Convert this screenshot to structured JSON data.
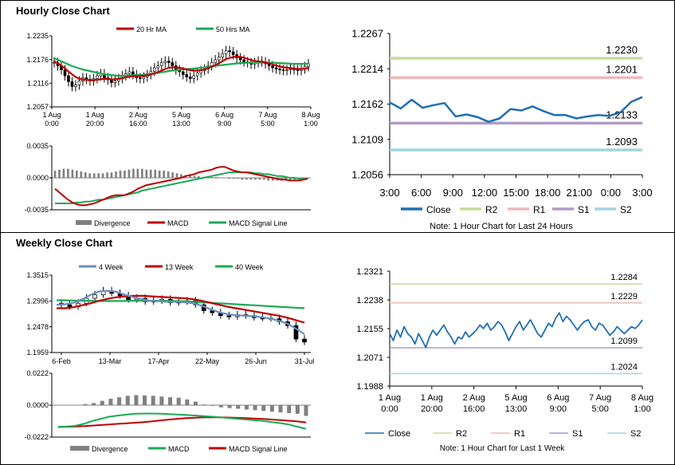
{
  "sections": {
    "hourly_title": "Hourly Close Chart",
    "weekly_title": "Weekly Close Chart"
  },
  "colors": {
    "ma_short": "#c00000",
    "ma_long": "#1aaa55",
    "close_blue": "#1f6fb4",
    "ma4_blue": "#6a8fc4",
    "r2": "#c6dc9a",
    "r1": "#efb8b8",
    "s1": "#b09ac8",
    "s2": "#9fd5e0",
    "divergence": "#808080",
    "grid": "#000000",
    "candle": "#000000"
  },
  "chart_data": [
    {
      "id": "hourly_price",
      "type": "line",
      "title": "",
      "ylim": [
        1.2057,
        1.2235
      ],
      "yticks": [
        "1.2235",
        "1.2176",
        "1.2116",
        "1.2057"
      ],
      "xticks": [
        [
          "1 Aug",
          "0:00"
        ],
        [
          "1 Aug",
          "20:00"
        ],
        [
          "2 Aug",
          "16:00"
        ],
        [
          "5 Aug",
          "13:00"
        ],
        [
          "6 Aug",
          "9:00"
        ],
        [
          "7 Aug",
          "5:00"
        ],
        [
          "8 Aug",
          "1:00"
        ]
      ],
      "legend": [
        "20 Hr MA",
        "50 Hrs MA"
      ],
      "close": [
        1.2168,
        1.216,
        1.215,
        1.2135,
        1.212,
        1.2108,
        1.2112,
        1.2122,
        1.213,
        1.2126,
        1.2122,
        1.2128,
        1.2135,
        1.214,
        1.213,
        1.2125,
        1.2118,
        1.2122,
        1.2128,
        1.2135,
        1.214,
        1.2145,
        1.2138,
        1.213,
        1.2128,
        1.2132,
        1.2138,
        1.2146,
        1.2155,
        1.216,
        1.2168,
        1.2172,
        1.2168,
        1.216,
        1.215,
        1.2145,
        1.2138,
        1.2132,
        1.2128,
        1.2135,
        1.2142,
        1.2148,
        1.2152,
        1.216,
        1.2168,
        1.2175,
        1.2182,
        1.219,
        1.2198,
        1.2195,
        1.2188,
        1.218,
        1.2175,
        1.217,
        1.2168,
        1.2164,
        1.2168,
        1.2172,
        1.217,
        1.2165,
        1.216,
        1.2155,
        1.2152,
        1.215,
        1.2148,
        1.215,
        1.2152,
        1.215,
        1.2148,
        1.2152,
        1.2158,
        1.2165
      ],
      "ma20": [
        1.2172,
        1.2168,
        1.2162,
        1.2155,
        1.2147,
        1.214,
        1.2133,
        1.2128,
        1.2126,
        1.2125,
        1.2124,
        1.2124,
        1.2125,
        1.2126,
        1.2127,
        1.2127,
        1.2126,
        1.2126,
        1.2127,
        1.2129,
        1.2131,
        1.2133,
        1.2134,
        1.2134,
        1.2134,
        1.2135,
        1.2136,
        1.2138,
        1.2141,
        1.2144,
        1.2148,
        1.2152,
        1.2155,
        1.2156,
        1.2156,
        1.2155,
        1.2153,
        1.2151,
        1.2149,
        1.2148,
        1.2148,
        1.2149,
        1.2151,
        1.2154,
        1.2158,
        1.2162,
        1.2167,
        1.2172,
        1.2177,
        1.218,
        1.2182,
        1.2183,
        1.2182,
        1.218,
        1.2177,
        1.2174,
        1.2172,
        1.2171,
        1.217,
        1.2168,
        1.2166,
        1.2163,
        1.216,
        1.2158,
        1.2156,
        1.2155,
        1.2154,
        1.2153,
        1.2152,
        1.2152,
        1.2153,
        1.2155
      ],
      "ma50": [
        1.218,
        1.2176,
        1.2172,
        1.2168,
        1.2164,
        1.216,
        1.2157,
        1.2154,
        1.2151,
        1.2149,
        1.2147,
        1.2145,
        1.2143,
        1.2141,
        1.2139,
        1.2138,
        1.2137,
        1.2136,
        1.2135,
        1.2135,
        1.2135,
        1.2136,
        1.2136,
        1.2137,
        1.2137,
        1.2138,
        1.2139,
        1.214,
        1.2141,
        1.2142,
        1.2144,
        1.2145,
        1.2147,
        1.2148,
        1.2149,
        1.215,
        1.2151,
        1.2152,
        1.2152,
        1.2153,
        1.2154,
        1.2155,
        1.2156,
        1.2157,
        1.2158,
        1.216,
        1.2161,
        1.2162,
        1.2163,
        1.2164,
        1.2165,
        1.2166,
        1.2167,
        1.2167,
        1.2168,
        1.2168,
        1.2168,
        1.2168,
        1.2168,
        1.2168,
        1.2168,
        1.2168,
        1.2167,
        1.2167,
        1.2166,
        1.2166,
        1.2165,
        1.2165,
        1.2165,
        1.2165,
        1.2165,
        1.2166
      ]
    },
    {
      "id": "hourly_macd",
      "type": "line",
      "ylim": [
        -0.0035,
        0.0035
      ],
      "yticks": [
        "0.0035",
        "0.0000",
        "-0.0035"
      ],
      "legend": [
        "Divergence",
        "MACD",
        "MACD Signal Line"
      ],
      "macd": [
        -0.0012,
        -0.0016,
        -0.002,
        -0.0024,
        -0.0027,
        -0.0029,
        -0.003,
        -0.003,
        -0.0029,
        -0.0028,
        -0.0026,
        -0.0024,
        -0.0022,
        -0.002,
        -0.0019,
        -0.0019,
        -0.0019,
        -0.0017,
        -0.0015,
        -0.0012,
        -0.001,
        -0.0008,
        -0.0007,
        -0.0006,
        -0.0005,
        -0.0004,
        -0.0003,
        -0.0002,
        -0.0001,
        0.0,
        0.0002,
        0.0003,
        0.0004,
        0.0006,
        0.0007,
        0.0008,
        0.0009,
        0.0011,
        0.0012,
        0.0012,
        0.001,
        0.0008,
        0.0007,
        0.0006,
        0.0006,
        0.0005,
        0.0004,
        0.0003,
        0.0002,
        0.0001,
        0.0,
        -0.0001,
        -0.0002,
        -0.0002,
        -0.0003,
        -0.0003,
        -0.0003,
        -0.0002,
        -0.0001
      ],
      "signal": [
        -0.0028,
        -0.0028,
        -0.0028,
        -0.0028,
        -0.0028,
        -0.0027,
        -0.0027,
        -0.0026,
        -0.0026,
        -0.0025,
        -0.0024,
        -0.0024,
        -0.0023,
        -0.0022,
        -0.0021,
        -0.002,
        -0.0019,
        -0.0018,
        -0.0017,
        -0.0016,
        -0.0014,
        -0.0013,
        -0.0012,
        -0.0011,
        -0.001,
        -0.0009,
        -0.0008,
        -0.0007,
        -0.0006,
        -0.0005,
        -0.0004,
        -0.0003,
        -0.0002,
        -0.0001,
        0.0,
        0.0001,
        0.0002,
        0.0003,
        0.0004,
        0.0005,
        0.0006,
        0.0006,
        0.0006,
        0.0006,
        0.0006,
        0.0006,
        0.0005,
        0.0005,
        0.0004,
        0.0004,
        0.0003,
        0.0002,
        0.0002,
        0.0001,
        0.0,
        0.0,
        -0.0001,
        -0.0001,
        -0.0001
      ],
      "divergence": [
        0.0008,
        0.0009,
        0.001,
        0.001,
        0.0009,
        0.0008,
        0.0007,
        0.0006,
        0.0005,
        0.0005,
        0.0005,
        0.0005,
        0.0006,
        0.0006,
        0.0007,
        0.0008,
        0.0008,
        0.0009,
        0.001,
        0.001,
        0.001,
        0.0009,
        0.0009,
        0.0009,
        0.0008,
        0.0008,
        0.0007,
        0.0006,
        0.0005,
        0.0004,
        0.0003,
        0.0003,
        0.0002,
        0.0002,
        0.0001,
        0.0001,
        0.0001,
        0.0001,
        0.0,
        0.0,
        -0.0001,
        -0.0001,
        -0.0001,
        -0.0002,
        -0.0002,
        -0.0002,
        -0.0002,
        -0.0002,
        -0.0002,
        -0.0003,
        -0.0003,
        -0.0003,
        -0.0003,
        -0.0003,
        -0.0003,
        -0.0002,
        -0.0002,
        -0.0002,
        -0.0001
      ]
    },
    {
      "id": "hourly_24h",
      "type": "line",
      "ylim": [
        1.2056,
        1.2267
      ],
      "yticks": [
        "1.2267",
        "1.2214",
        "1.2162",
        "1.2109",
        "1.2056"
      ],
      "xticks": [
        "3:00",
        "6:00",
        "9:00",
        "12:00",
        "15:00",
        "18:00",
        "21:00",
        "0:00",
        "3:00"
      ],
      "levels": [
        {
          "name": "R2",
          "value": 1.223,
          "label": "1.2230"
        },
        {
          "name": "R1",
          "value": 1.2201,
          "label": "1.2201"
        },
        {
          "name": "S1",
          "value": 1.2133,
          "label": "1.2133"
        },
        {
          "name": "S2",
          "value": 1.2093,
          "label": "1.2093"
        }
      ],
      "close": [
        1.2164,
        1.2155,
        1.2168,
        1.2156,
        1.216,
        1.2163,
        1.2143,
        1.2146,
        1.2142,
        1.2135,
        1.214,
        1.2154,
        1.2152,
        1.2158,
        1.2151,
        1.2145,
        1.2145,
        1.214,
        1.2143,
        1.2145,
        1.2144,
        1.2149,
        1.2165,
        1.2172
      ],
      "legend": [
        "Close",
        "R2",
        "R1",
        "S1",
        "S2"
      ],
      "note": "Note: 1 Hour Chart for Last 24 Hours"
    },
    {
      "id": "weekly_price",
      "type": "line",
      "ylim": [
        1.1959,
        1.3515
      ],
      "yticks": [
        "1.3515",
        "1.2996",
        "1.2478",
        "1.1959"
      ],
      "xticks": [
        "6-Feb",
        "13-Mar",
        "17-Apr",
        "22-May",
        "26-Jun",
        "31-Jul"
      ],
      "legend": [
        "4 Week",
        "13 Week",
        "40 Week"
      ],
      "close": [
        1.292,
        1.288,
        1.295,
        1.305,
        1.312,
        1.32,
        1.315,
        1.31,
        1.302,
        1.305,
        1.298,
        1.3,
        1.303,
        1.296,
        1.298,
        1.3,
        1.292,
        1.28,
        1.276,
        1.27,
        1.268,
        1.272,
        1.27,
        1.266,
        1.265,
        1.264,
        1.258,
        1.25,
        1.223,
        1.217
      ],
      "ma4": [
        1.292,
        1.293,
        1.296,
        1.303,
        1.312,
        1.319,
        1.32,
        1.318,
        1.312,
        1.307,
        1.303,
        1.3,
        1.299,
        1.298,
        1.298,
        1.297,
        1.295,
        1.29,
        1.283,
        1.277,
        1.273,
        1.271,
        1.27,
        1.269,
        1.267,
        1.264,
        1.26,
        1.254,
        1.244,
        1.233
      ],
      "ma13": [
        1.285,
        1.285,
        1.287,
        1.291,
        1.295,
        1.3,
        1.304,
        1.307,
        1.309,
        1.31,
        1.31,
        1.309,
        1.308,
        1.307,
        1.306,
        1.305,
        1.303,
        1.3,
        1.296,
        1.292,
        1.288,
        1.285,
        1.282,
        1.279,
        1.276,
        1.273,
        1.27,
        1.266,
        1.261,
        1.256
      ],
      "ma40": [
        1.301,
        1.301,
        1.3005,
        1.3,
        1.2998,
        1.2996,
        1.2995,
        1.2995,
        1.2996,
        1.2998,
        1.2999,
        1.3,
        1.3,
        1.2998,
        1.2996,
        1.299,
        1.298,
        1.297,
        1.296,
        1.295,
        1.294,
        1.293,
        1.292,
        1.291,
        1.29,
        1.289,
        1.288,
        1.287,
        1.286,
        1.285
      ]
    },
    {
      "id": "weekly_macd",
      "type": "line",
      "ylim": [
        -0.0222,
        0.0222
      ],
      "yticks": [
        "0.0222",
        "0.0000",
        "-0.0222"
      ],
      "legend": [
        "Divergence",
        "MACD",
        "MACD Signal Line"
      ],
      "divergence": [
        0.0,
        0.0,
        0.0,
        0.0008,
        0.0015,
        0.003,
        0.0045,
        0.0055,
        0.0065,
        0.007,
        0.0068,
        0.0065,
        0.006,
        0.0055,
        0.0052,
        0.004,
        0.0025,
        0.0005,
        -0.0005,
        -0.0015,
        -0.002,
        -0.0025,
        -0.003,
        -0.0035,
        -0.004,
        -0.0045,
        -0.005,
        -0.0055,
        -0.006,
        -0.0075
      ],
      "macd": [
        -0.015,
        -0.0148,
        -0.0144,
        -0.013,
        -0.011,
        -0.0095,
        -0.008,
        -0.0072,
        -0.0065,
        -0.006,
        -0.0058,
        -0.0058,
        -0.006,
        -0.0062,
        -0.0065,
        -0.0068,
        -0.0072,
        -0.0076,
        -0.008,
        -0.0085,
        -0.009,
        -0.0095,
        -0.01,
        -0.0105,
        -0.011,
        -0.0118,
        -0.0125,
        -0.0135,
        -0.015,
        -0.0165
      ],
      "signal": [
        -0.0152,
        -0.015,
        -0.0148,
        -0.0146,
        -0.0142,
        -0.0138,
        -0.0134,
        -0.013,
        -0.0126,
        -0.0122,
        -0.0118,
        -0.0112,
        -0.0106,
        -0.01,
        -0.0095,
        -0.009,
        -0.0087,
        -0.0085,
        -0.0085,
        -0.0085,
        -0.0086,
        -0.0088,
        -0.009,
        -0.0093,
        -0.0096,
        -0.01,
        -0.0104,
        -0.0108,
        -0.0113,
        -0.012
      ]
    },
    {
      "id": "weekly_hourly",
      "type": "line",
      "ylim": [
        1.1988,
        1.2321
      ],
      "yticks": [
        "1.2321",
        "1.2238",
        "1.2155",
        "1.2071",
        "1.1988"
      ],
      "xticks": [
        [
          "1 Aug",
          "0:00"
        ],
        [
          "1 Aug",
          "20:00"
        ],
        [
          "2 Aug",
          "16:00"
        ],
        [
          "5 Aug",
          "13:00"
        ],
        [
          "6 Aug",
          "9:00"
        ],
        [
          "7 Aug",
          "5:00"
        ],
        [
          "8 Aug",
          "1:00"
        ]
      ],
      "levels": [
        {
          "name": "R2",
          "value": 1.2284,
          "label": "1.2284"
        },
        {
          "name": "R1",
          "value": 1.2229,
          "label": "1.2229"
        },
        {
          "name": "S1",
          "value": 1.2099,
          "label": "1.2099"
        },
        {
          "name": "S2",
          "value": 1.2024,
          "label": "1.2024"
        }
      ],
      "close": [
        1.214,
        1.212,
        1.215,
        1.213,
        1.216,
        1.214,
        1.213,
        1.211,
        1.214,
        1.212,
        1.21,
        1.213,
        1.215,
        1.2135,
        1.215,
        1.2165,
        1.2145,
        1.213,
        1.211,
        1.213,
        1.2125,
        1.2145,
        1.213,
        1.214,
        1.215,
        1.2165,
        1.2155,
        1.217,
        1.215,
        1.216,
        1.2175,
        1.2165,
        1.2145,
        1.212,
        1.214,
        1.216,
        1.2175,
        1.215,
        1.2165,
        1.218,
        1.216,
        1.214,
        1.213,
        1.215,
        1.217,
        1.216,
        1.2185,
        1.22,
        1.2175,
        1.219,
        1.218,
        1.2165,
        1.215,
        1.2165,
        1.2175,
        1.218,
        1.216,
        1.215,
        1.217,
        1.2165,
        1.215,
        1.2135,
        1.2145,
        1.216,
        1.215,
        1.214,
        1.215,
        1.216,
        1.2155,
        1.2165,
        1.218
      ],
      "legend": [
        "Close",
        "R2",
        "R1",
        "S1",
        "S2"
      ],
      "note": "Note: 1 Hour Chart for Last 1 Week"
    }
  ]
}
